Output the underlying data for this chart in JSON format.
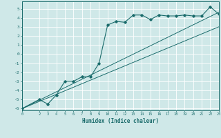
{
  "xlabel": "Humidex (Indice chaleur)",
  "background_color": "#cfe8e8",
  "grid_color": "#ffffff",
  "line_color": "#1a6b6b",
  "xlim": [
    0,
    23
  ],
  "ylim": [
    -6.2,
    5.8
  ],
  "yticks": [
    -6,
    -5,
    -4,
    -3,
    -2,
    -1,
    0,
    1,
    2,
    3,
    4,
    5
  ],
  "xticks": [
    0,
    2,
    3,
    4,
    5,
    6,
    7,
    8,
    9,
    10,
    11,
    12,
    13,
    14,
    15,
    16,
    17,
    18,
    19,
    20,
    21,
    22,
    23
  ],
  "data_x": [
    0,
    2,
    3,
    4,
    5,
    6,
    7,
    8,
    9,
    10,
    11,
    12,
    13,
    14,
    15,
    16,
    17,
    18,
    19,
    20,
    21,
    22,
    23
  ],
  "data_y": [
    -6.0,
    -5.0,
    -5.5,
    -4.5,
    -3.0,
    -3.0,
    -2.5,
    -2.5,
    -1.0,
    3.2,
    3.6,
    3.5,
    4.3,
    4.3,
    3.8,
    4.3,
    4.2,
    4.2,
    4.3,
    4.2,
    4.2,
    5.2,
    4.4
  ],
  "line1_x": [
    0,
    23
  ],
  "line1_y": [
    -6.0,
    4.6
  ],
  "line2_x": [
    0,
    23
  ],
  "line2_y": [
    -6.0,
    3.0
  ]
}
